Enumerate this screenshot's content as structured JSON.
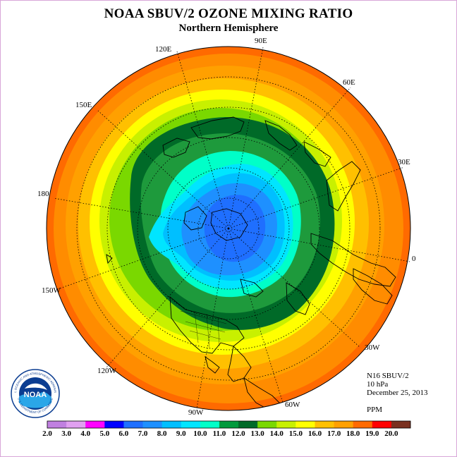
{
  "header": {
    "title": "NOAA SBUV/2 OZONE MIXING RATIO",
    "subtitle": "Northern Hemisphere"
  },
  "longitude_labels": {
    "lon_90e": "90E",
    "lon_120e": "120E",
    "lon_60e": "60E",
    "lon_150e": "150E",
    "lon_30e": "30E",
    "lon_180": "180",
    "lon_0": "0",
    "lon_150w": "150W",
    "lon_30w": "30W",
    "lon_120w": "120W",
    "lon_60w": "60W",
    "lon_90w": "90W"
  },
  "info": {
    "instrument": "N16 SBUV/2",
    "level": "10 hPa",
    "date": "December 25, 2013",
    "units": "PPM"
  },
  "colorbar": {
    "ticks": [
      "2.0",
      "3.0",
      "4.0",
      "5.0",
      "6.0",
      "7.0",
      "8.0",
      "9.0",
      "10.0",
      "11.0",
      "12.0",
      "13.0",
      "14.0",
      "15.0",
      "16.0",
      "17.0",
      "18.0",
      "19.0",
      "20.0"
    ],
    "colors": [
      "#c080e0",
      "#e0a0f0",
      "#ff00ff",
      "#0000ff",
      "#1f6fff",
      "#1e90ff",
      "#00bfff",
      "#00e5ff",
      "#00ffc8",
      "#009a3c",
      "#006a28",
      "#7ad800",
      "#c8f000",
      "#ffff00",
      "#ffc000",
      "#ffa000",
      "#ff6a00",
      "#ff0000",
      "#7a3020"
    ]
  },
  "logo": {
    "text": "NOAA",
    "ring_top": "NATIONAL OCEANIC AND ATMOSPHERIC ADMINISTRATION",
    "ring_bottom": "U.S. DEPARTMENT OF COMMERCE"
  }
}
